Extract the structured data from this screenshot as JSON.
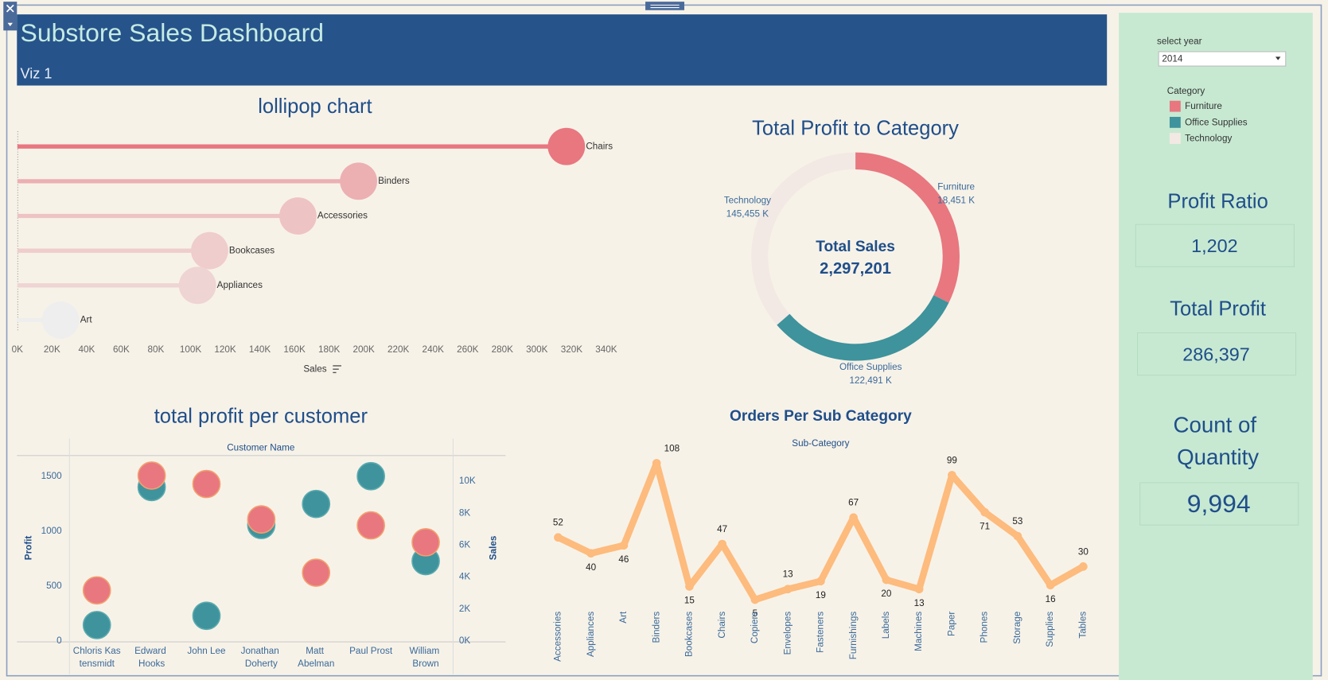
{
  "header": {
    "title": "Substore Sales Dashboard",
    "subtitle": "Viz 1"
  },
  "filter": {
    "label": "select year",
    "value": "2014"
  },
  "legend": {
    "title": "Category",
    "items": [
      {
        "name": "Furniture",
        "color": "#e8777f"
      },
      {
        "name": "Office Supplies",
        "color": "#3e939c"
      },
      {
        "name": "Technology",
        "color": "#f3e9e4"
      }
    ]
  },
  "kpis": [
    {
      "title": "Profit Ratio",
      "value": "1,202"
    },
    {
      "title": "Total Profit",
      "value": "286,397"
    },
    {
      "title": "Count of Quantity",
      "value": "9,994"
    }
  ],
  "chart_data": [
    {
      "type": "lollipop",
      "title": "lollipop chart",
      "x_label": "Sales",
      "categories": [
        "Chairs",
        "Binders",
        "Accessories",
        "Bookcases",
        "Appliances",
        "Art"
      ],
      "values": [
        317000,
        197000,
        162000,
        111000,
        104000,
        25000
      ],
      "colors": [
        "#e8777f",
        "#ecb0b2",
        "#eec3c3",
        "#efcdcc",
        "#efd4d4",
        "#eeeeee"
      ],
      "xlim": [
        0,
        345000
      ],
      "xticks": [
        {
          "value": 0,
          "label": "0K"
        },
        {
          "value": 20000,
          "label": "20K"
        },
        {
          "value": 40000,
          "label": "40K"
        },
        {
          "value": 60000,
          "label": "60K"
        },
        {
          "value": 80000,
          "label": "80K"
        },
        {
          "value": 100000,
          "label": "100K"
        },
        {
          "value": 120000,
          "label": "120K"
        },
        {
          "value": 140000,
          "label": "140K"
        },
        {
          "value": 160000,
          "label": "160K"
        },
        {
          "value": 180000,
          "label": "180K"
        },
        {
          "value": 200000,
          "label": "200K"
        },
        {
          "value": 220000,
          "label": "220K"
        },
        {
          "value": 240000,
          "label": "240K"
        },
        {
          "value": 260000,
          "label": "260K"
        },
        {
          "value": 280000,
          "label": "280K"
        },
        {
          "value": 300000,
          "label": "300K"
        },
        {
          "value": 320000,
          "label": "320K"
        },
        {
          "value": 340000,
          "label": "340K"
        }
      ]
    },
    {
      "type": "donut",
      "title": "Total Profit to Category",
      "center_label": "Total Sales",
      "center_value": "2,297,201",
      "categories": [
        "Furniture",
        "Office Supplies",
        "Technology"
      ],
      "values": [
        742000,
        719047,
        836154
      ],
      "profit_labels": [
        "18,451 K",
        "122,491 K",
        "145,455 K"
      ],
      "colors": [
        "#e8777f",
        "#3e939c",
        "#f3e9e4"
      ]
    },
    {
      "type": "scatter",
      "title": "total profit per customer",
      "x_header": "Customer Name",
      "categories": [
        "Chloris Kastensmidt",
        "Edward Hooks",
        "John Lee",
        "Jonathan Doherty",
        "Matt Abelman",
        "Paul Prost",
        "William Brown"
      ],
      "series": [
        {
          "name": "Sales",
          "color": "#3e939c",
          "axis": "y2",
          "values": [
            1000,
            9630,
            1580,
            7260,
            8575,
            10310,
            5000
          ]
        },
        {
          "name": "Profit",
          "color": "#e8777f",
          "values": [
            462,
            1508,
            1431,
            1108,
            623,
            1054,
            900
          ]
        }
      ],
      "ylim": [
        0,
        1690
      ],
      "yticks": [
        0,
        500,
        1000,
        1500
      ],
      "y2lim": [
        0,
        11600
      ],
      "y2ticks": [
        {
          "value": 0,
          "label": "0K"
        },
        {
          "value": 2000,
          "label": "2K"
        },
        {
          "value": 4000,
          "label": "4K"
        },
        {
          "value": 6000,
          "label": "6K"
        },
        {
          "value": 8000,
          "label": "8K"
        },
        {
          "value": 10000,
          "label": "10K"
        }
      ]
    },
    {
      "type": "line",
      "title": "Orders Per Sub Category",
      "x_header": "Sub-Category",
      "categories": [
        "Accessories",
        "Appliances",
        "Art",
        "Binders",
        "Bookcases",
        "Chairs",
        "Copiers",
        "Envelopes",
        "Fasteners",
        "Furnishings",
        "Labels",
        "Machines",
        "Paper",
        "Phones",
        "Storage",
        "Supplies",
        "Tables"
      ],
      "values": [
        52,
        40,
        46,
        108,
        15,
        47,
        5,
        13,
        19,
        67,
        20,
        13,
        99,
        71,
        53,
        16,
        30
      ],
      "color": "#fdbb7d"
    }
  ]
}
